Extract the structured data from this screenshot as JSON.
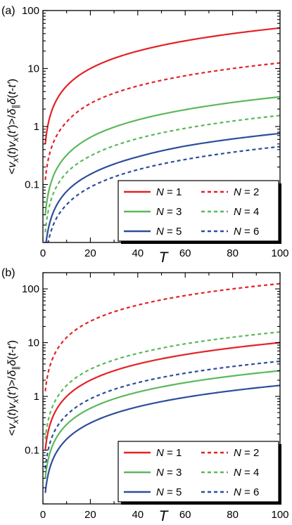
{
  "chart_data": [
    {
      "type": "line",
      "panel_label": "(a)",
      "xlabel": "T",
      "ylabel": "<v_x(t)v_x(t')>/δ_∥δ(t-t')",
      "xlim": [
        0,
        100
      ],
      "ylim": [
        0.01,
        100
      ],
      "yscale": "log",
      "xticks": [
        0,
        20,
        40,
        60,
        80,
        100
      ],
      "xtick_labels": [
        "0",
        "20",
        "40",
        "60",
        "80",
        "100"
      ],
      "yticks": [
        0.1,
        1,
        10,
        100
      ],
      "ytick_labels": [
        "0.1",
        "1",
        "10",
        "100"
      ],
      "grid": false,
      "legend_position": "bottom-right",
      "x": [
        1,
        5,
        10,
        20,
        40,
        60,
        80,
        100
      ],
      "series": [
        {
          "name": "N = 1",
          "color": "#e32227",
          "dash": "solid",
          "values": [
            0.5,
            2.5,
            5.0,
            10.0,
            20.0,
            30.0,
            40.0,
            50.0
          ]
        },
        {
          "name": "N = 2",
          "color": "#e32227",
          "dash": "dashed",
          "values": [
            0.12,
            0.6,
            1.2,
            2.5,
            5.0,
            7.5,
            10.0,
            12.5
          ]
        },
        {
          "name": "N = 3",
          "color": "#5cb85c",
          "dash": "solid",
          "values": [
            0.03,
            0.16,
            0.32,
            0.65,
            1.3,
            1.95,
            2.6,
            3.25
          ]
        },
        {
          "name": "N = 4",
          "color": "#5cb85c",
          "dash": "dashed",
          "values": [
            0.015,
            0.08,
            0.16,
            0.31,
            0.62,
            0.93,
            1.24,
            1.55
          ]
        },
        {
          "name": "N = 5",
          "color": "#2e4e9c",
          "dash": "solid",
          "values": [
            0.0075,
            0.038,
            0.076,
            0.15,
            0.3,
            0.46,
            0.61,
            0.76
          ]
        },
        {
          "name": "N = 6",
          "color": "#2e4e9c",
          "dash": "dashed",
          "values": [
            0.0045,
            0.023,
            0.045,
            0.09,
            0.18,
            0.27,
            0.36,
            0.45
          ]
        }
      ]
    },
    {
      "type": "line",
      "panel_label": "(b)",
      "xlabel": "T",
      "ylabel": "<v_x(t)v_x(t')>/δ_∥δ(t-t')",
      "xlim": [
        0,
        100
      ],
      "ylim": [
        0.01,
        200
      ],
      "yscale": "log",
      "xticks": [
        0,
        20,
        40,
        60,
        80,
        100
      ],
      "xtick_labels": [
        "0",
        "20",
        "40",
        "60",
        "80",
        "100"
      ],
      "yticks": [
        0.1,
        1,
        10,
        100
      ],
      "ytick_labels": [
        "0.1",
        "1",
        "10",
        "100"
      ],
      "grid": false,
      "legend_position": "bottom-right",
      "x": [
        1,
        5,
        10,
        20,
        40,
        60,
        80,
        100
      ],
      "series": [
        {
          "name": "N = 1",
          "color": "#e32227",
          "dash": "solid",
          "values": [
            0.1,
            0.5,
            1.0,
            2.0,
            4.0,
            6.0,
            8.0,
            10.0
          ]
        },
        {
          "name": "N = 2",
          "color": "#e32227",
          "dash": "dashed",
          "values": [
            1.25,
            6.2,
            12.5,
            25.0,
            50.0,
            75.0,
            100.0,
            125.0
          ]
        },
        {
          "name": "N = 3",
          "color": "#5cb85c",
          "dash": "solid",
          "values": [
            0.03,
            0.15,
            0.3,
            0.6,
            1.2,
            1.8,
            2.4,
            3.0
          ]
        },
        {
          "name": "N = 4",
          "color": "#5cb85c",
          "dash": "dashed",
          "values": [
            0.16,
            0.8,
            1.6,
            3.2,
            6.3,
            9.5,
            12.6,
            15.8
          ]
        },
        {
          "name": "N = 5",
          "color": "#2e4e9c",
          "dash": "solid",
          "values": [
            0.016,
            0.08,
            0.16,
            0.32,
            0.64,
            0.96,
            1.28,
            1.6
          ]
        },
        {
          "name": "N = 6",
          "color": "#2e4e9c",
          "dash": "dashed",
          "values": [
            0.045,
            0.23,
            0.45,
            0.9,
            1.8,
            2.7,
            3.6,
            4.5
          ]
        }
      ]
    }
  ]
}
